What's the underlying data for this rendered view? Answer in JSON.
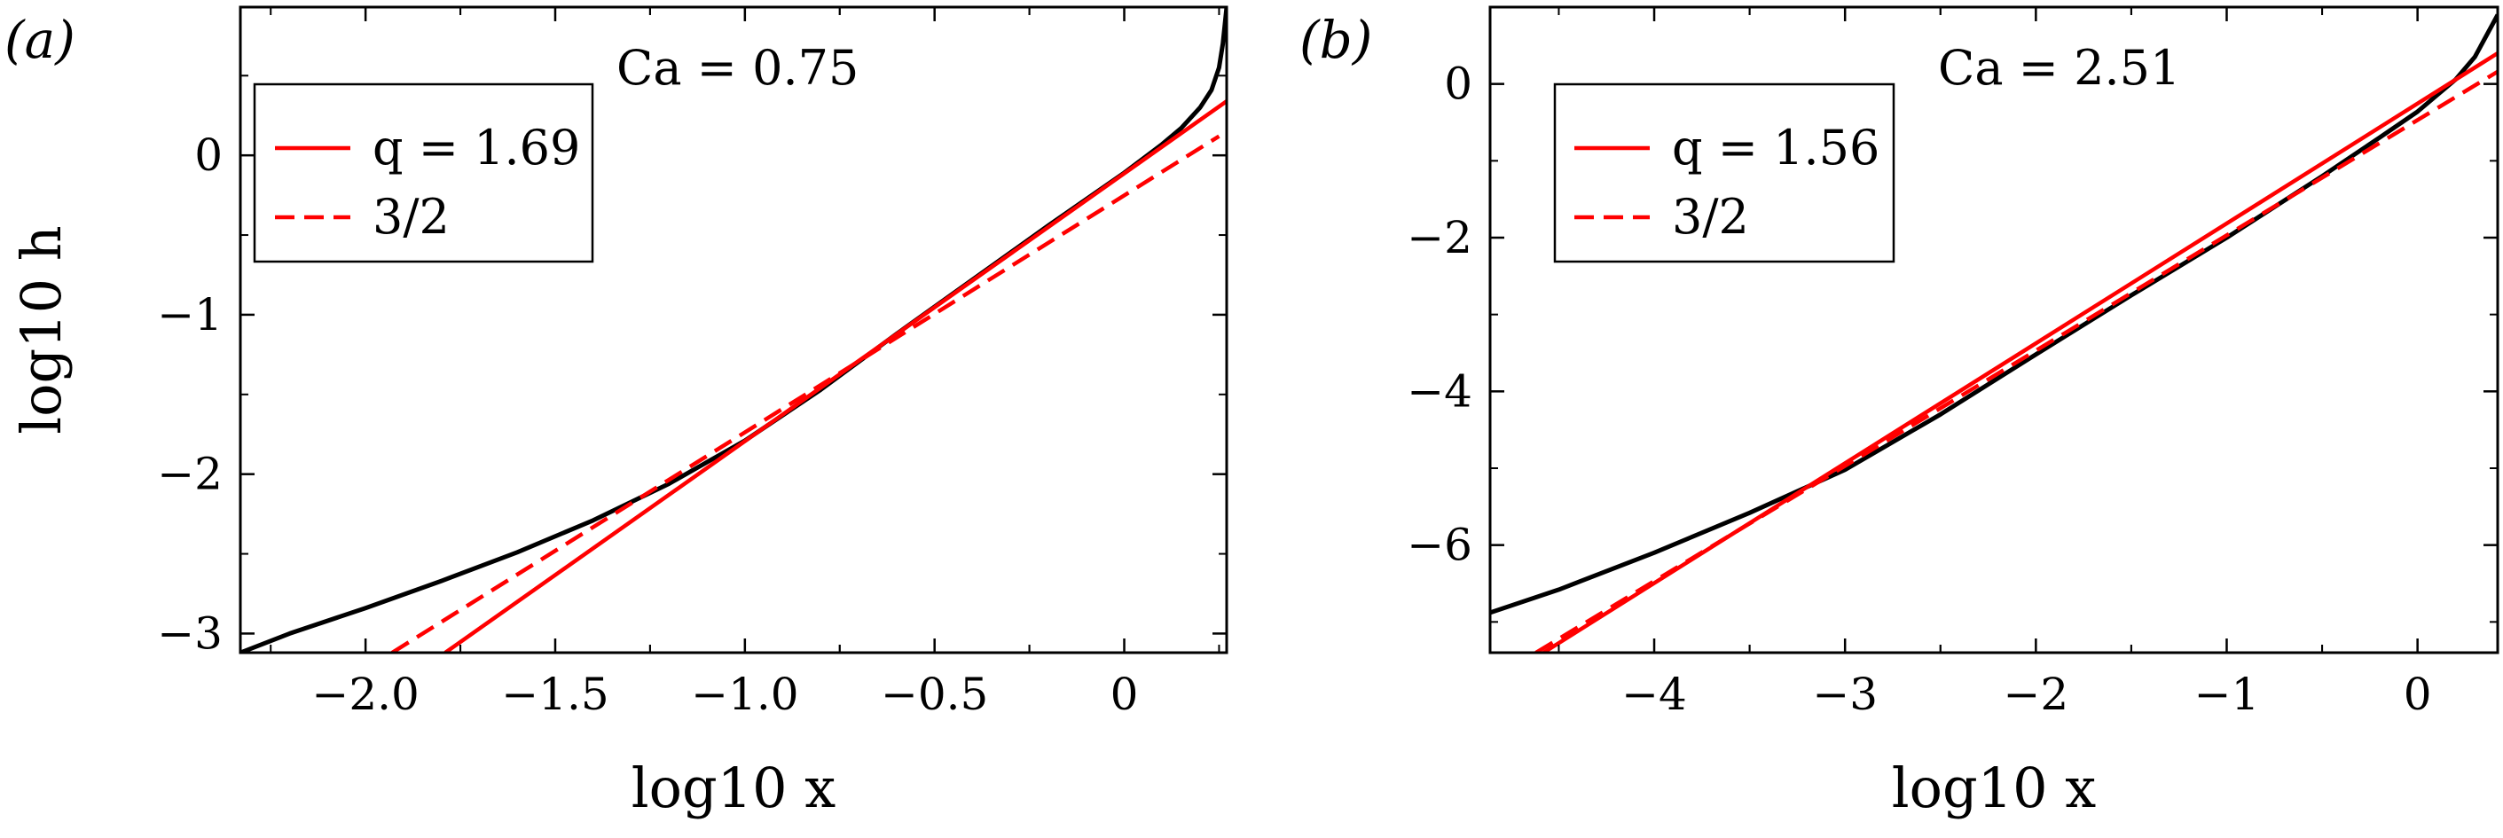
{
  "chart_data": [
    {
      "type": "line",
      "panel_label": "(a)",
      "annotation": "Ca = 0.75",
      "xlabel": "log10 x",
      "ylabel": "log10 h",
      "xlim": [
        -2.33,
        0.27
      ],
      "ylim": [
        -3.12,
        0.93
      ],
      "xticks": [
        -2.0,
        -1.5,
        -1.0,
        -0.5,
        0
      ],
      "xtick_labels": [
        "−2.0",
        "−1.5",
        "−1.0",
        "−0.5",
        "0"
      ],
      "yticks": [
        -3,
        -2,
        -1,
        0
      ],
      "ytick_labels": [
        "−3",
        "−2",
        "−1",
        "0"
      ],
      "legend": {
        "position": "top-left",
        "entries": [
          "q = 1.69",
          "3/2"
        ]
      },
      "colors": {
        "profile": "#000000",
        "fit": "#ff0000",
        "reference": "#ff0000"
      },
      "series": [
        {
          "role": "profile",
          "style": "solid",
          "color": "#000000",
          "x": [
            -2.33,
            -2.2,
            -2.0,
            -1.8,
            -1.6,
            -1.4,
            -1.2,
            -1.0,
            -0.8,
            -0.6,
            -0.4,
            -0.2,
            0.0,
            0.1,
            0.15,
            0.2,
            0.23,
            0.25,
            0.26,
            0.27
          ],
          "y": [
            -3.12,
            -3.0,
            -2.84,
            -2.67,
            -2.49,
            -2.29,
            -2.06,
            -1.79,
            -1.47,
            -1.12,
            -0.78,
            -0.44,
            -0.11,
            0.07,
            0.17,
            0.3,
            0.41,
            0.55,
            0.7,
            0.93
          ]
        },
        {
          "name": "q = 1.69",
          "role": "fit",
          "style": "solid",
          "color": "#ff0000",
          "x": [
            -1.79,
            0.27
          ],
          "y": [
            -3.12,
            0.34
          ]
        },
        {
          "name": "3/2",
          "role": "reference",
          "style": "dashed",
          "color": "#ff0000",
          "x": [
            -1.93,
            0.25
          ],
          "y": [
            -3.12,
            0.12
          ]
        }
      ]
    },
    {
      "type": "line",
      "panel_label": "(b)",
      "annotation": "Ca = 2.51",
      "xlabel": "log10 x",
      "ylabel": "",
      "xlim": [
        -4.86,
        0.42
      ],
      "ylim": [
        -7.4,
        1.0
      ],
      "xticks": [
        -4,
        -3,
        -2,
        -1,
        0
      ],
      "xtick_labels": [
        "−4",
        "−3",
        "−2",
        "−1",
        "0"
      ],
      "yticks": [
        -6,
        -4,
        -2,
        0
      ],
      "ytick_labels": [
        "−6",
        "−4",
        "−2",
        "0"
      ],
      "legend": {
        "position": "top-left",
        "entries": [
          "q = 1.56",
          "3/2"
        ]
      },
      "colors": {
        "profile": "#000000",
        "fit": "#ff0000",
        "reference": "#ff0000"
      },
      "series": [
        {
          "role": "profile",
          "style": "solid",
          "color": "#000000",
          "x": [
            -4.86,
            -4.5,
            -4.0,
            -3.5,
            -3.0,
            -2.5,
            -2.0,
            -1.5,
            -1.0,
            -0.5,
            -0.2,
            0.0,
            0.2,
            0.3,
            0.42
          ],
          "y": [
            -6.88,
            -6.58,
            -6.1,
            -5.58,
            -5.02,
            -4.3,
            -3.52,
            -2.75,
            -2.0,
            -1.2,
            -0.7,
            -0.36,
            0.06,
            0.35,
            0.9
          ]
        },
        {
          "name": "q = 1.56",
          "role": "fit",
          "style": "solid",
          "color": "#ff0000",
          "x": [
            -4.58,
            0.42
          ],
          "y": [
            -7.4,
            0.4
          ]
        },
        {
          "name": "3/2",
          "role": "reference",
          "style": "dashed",
          "color": "#ff0000",
          "x": [
            -4.62,
            0.42
          ],
          "y": [
            -7.4,
            0.16
          ]
        }
      ]
    }
  ]
}
